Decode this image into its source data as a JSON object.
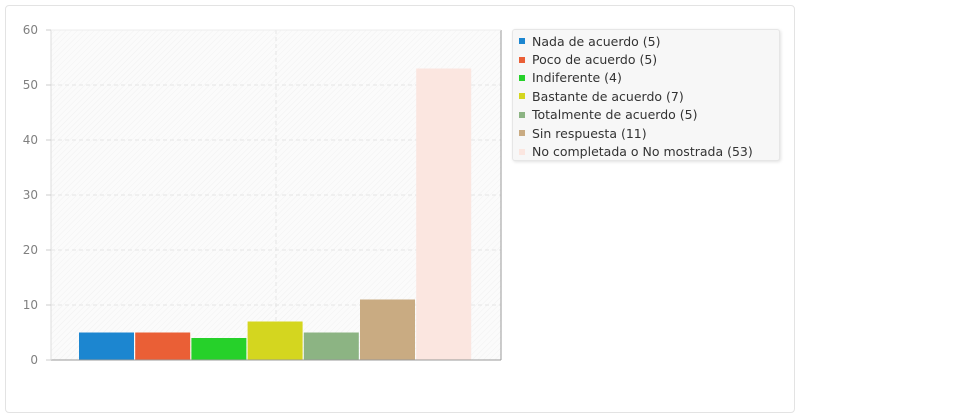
{
  "chart_data": {
    "type": "bar",
    "categories": [
      "Nada de acuerdo",
      "Poco de acuerdo",
      "Indiferente",
      "Bastante de acuerdo",
      "Totalmente de acuerdo",
      "Sin respuesta",
      "No completada o No mostrada"
    ],
    "values": [
      5,
      5,
      4,
      7,
      5,
      11,
      53
    ],
    "colors": [
      "#1c86d0",
      "#ea5f36",
      "#26d12a",
      "#d4d61f",
      "#8cb483",
      "#c9ab82",
      "#fbe6e0"
    ],
    "legend": [
      "Nada de acuerdo (5)",
      "Poco de acuerdo (5)",
      "Indiferente (4)",
      "Bastante de acuerdo (7)",
      "Totalmente de acuerdo (5)",
      "Sin respuesta (11)",
      "No completada o No mostrada (53)"
    ],
    "legend_position": "top-right",
    "y_ticks": [
      "0",
      "10",
      "20",
      "30",
      "40",
      "50",
      "60"
    ],
    "ylim": [
      0,
      60
    ],
    "grid": true,
    "title": "",
    "xlabel": "",
    "ylabel": ""
  }
}
